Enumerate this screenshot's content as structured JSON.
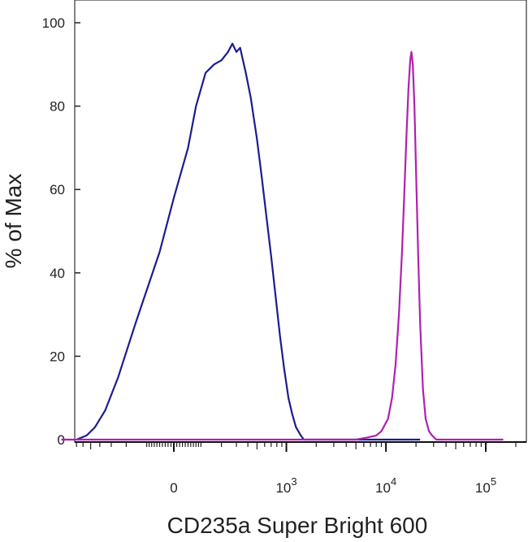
{
  "chart_data": {
    "type": "line",
    "title": "",
    "xlabel": "CD235a Super Bright 600",
    "ylabel": "% of Max",
    "x_scale": "biexponential",
    "y_range": [
      0,
      100
    ],
    "y_ticks": [
      {
        "value": 0,
        "label": "0"
      },
      {
        "value": 20,
        "label": "20"
      },
      {
        "value": 40,
        "label": "40"
      },
      {
        "value": 60,
        "label": "60"
      },
      {
        "value": 80,
        "label": "80"
      },
      {
        "value": 100,
        "label": "100"
      }
    ],
    "x_ticks": [
      {
        "value": 0,
        "base": "0",
        "exp": ""
      },
      {
        "value": 1000,
        "base": "10",
        "exp": "3"
      },
      {
        "value": 10000,
        "base": "10",
        "exp": "4"
      },
      {
        "value": 100000,
        "base": "10",
        "exp": "5"
      }
    ],
    "grid": false,
    "legend": "none",
    "series": [
      {
        "color": "#1c1c8f",
        "points": [
          [
            -700,
            0
          ],
          [
            -550,
            1
          ],
          [
            -450,
            3
          ],
          [
            -350,
            7
          ],
          [
            -250,
            15
          ],
          [
            -150,
            28
          ],
          [
            -50,
            45
          ],
          [
            0,
            58
          ],
          [
            50,
            70
          ],
          [
            80,
            80
          ],
          [
            120,
            88
          ],
          [
            160,
            90
          ],
          [
            200,
            91
          ],
          [
            240,
            93
          ],
          [
            270,
            95
          ],
          [
            300,
            93
          ],
          [
            330,
            94
          ],
          [
            380,
            88
          ],
          [
            430,
            82
          ],
          [
            500,
            72
          ],
          [
            560,
            63
          ],
          [
            630,
            53
          ],
          [
            700,
            44
          ],
          [
            780,
            34
          ],
          [
            860,
            25
          ],
          [
            950,
            17
          ],
          [
            1050,
            10
          ],
          [
            1150,
            6
          ],
          [
            1250,
            3
          ],
          [
            1400,
            1
          ],
          [
            1500,
            0
          ],
          [
            10000,
            0
          ],
          [
            16000,
            0
          ],
          [
            22000,
            0
          ]
        ]
      },
      {
        "color": "#b020b0",
        "points": [
          [
            -1000,
            0
          ],
          [
            5000,
            0
          ],
          [
            6500,
            0.5
          ],
          [
            8000,
            1
          ],
          [
            9000,
            2
          ],
          [
            10500,
            5
          ],
          [
            11500,
            10
          ],
          [
            12500,
            18
          ],
          [
            13500,
            30
          ],
          [
            14500,
            45
          ],
          [
            15200,
            58
          ],
          [
            16000,
            72
          ],
          [
            16800,
            84
          ],
          [
            17500,
            91
          ],
          [
            18000,
            93
          ],
          [
            18600,
            90
          ],
          [
            19300,
            80
          ],
          [
            20000,
            65
          ],
          [
            21000,
            45
          ],
          [
            22000,
            28
          ],
          [
            23500,
            12
          ],
          [
            25000,
            5
          ],
          [
            27000,
            2
          ],
          [
            29000,
            1
          ],
          [
            32000,
            0
          ],
          [
            150000,
            0
          ]
        ]
      }
    ]
  }
}
